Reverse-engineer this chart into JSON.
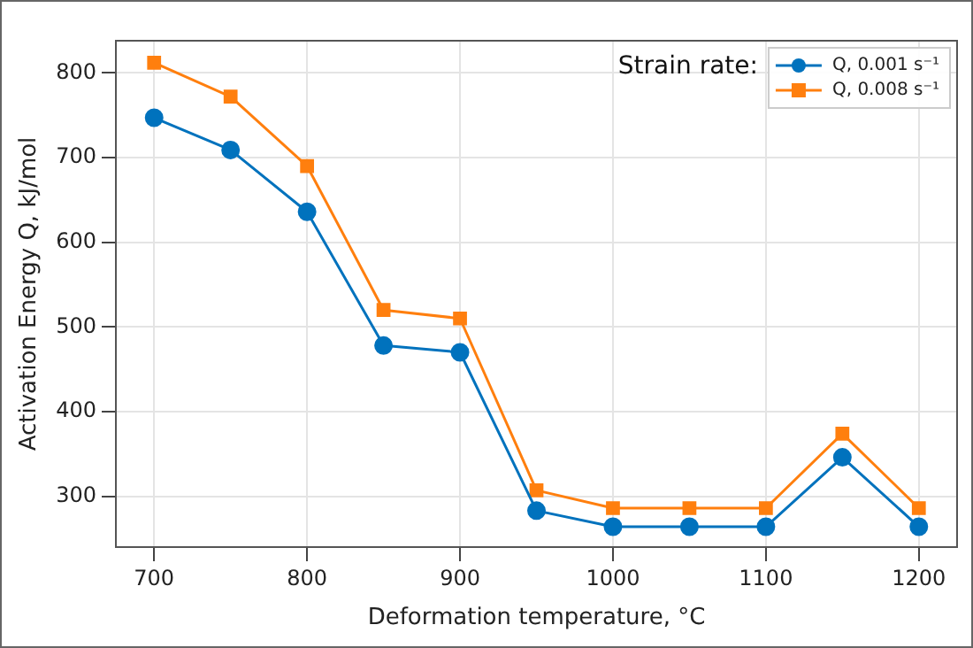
{
  "chart_data": {
    "type": "line",
    "xlabel": "Deformation temperature, °C",
    "ylabel": "Activation Energy Q, kJ/mol",
    "legend_title": "Strain rate:",
    "legend": "top right",
    "grid": true,
    "x": [
      700,
      750,
      800,
      850,
      900,
      950,
      1000,
      1050,
      1100,
      1150,
      1200
    ],
    "xlim": [
      675,
      1225
    ],
    "xticks": [
      700,
      800,
      900,
      1000,
      1100,
      1200
    ],
    "ylim": [
      240,
      838
    ],
    "yticks": [
      300,
      400,
      500,
      600,
      700,
      800
    ],
    "series": [
      {
        "name": "Q, 0.001 s⁻¹",
        "color": "#0072bd",
        "marker": "circle",
        "values": [
          747,
          709,
          636,
          478,
          470,
          283,
          264,
          264,
          264,
          346,
          264
        ]
      },
      {
        "name": "Q, 0.008 s⁻¹",
        "color": "#ff7f0e",
        "marker": "square",
        "values": [
          812,
          772,
          690,
          520,
          510,
          307,
          286,
          286,
          286,
          374,
          286
        ]
      }
    ]
  }
}
